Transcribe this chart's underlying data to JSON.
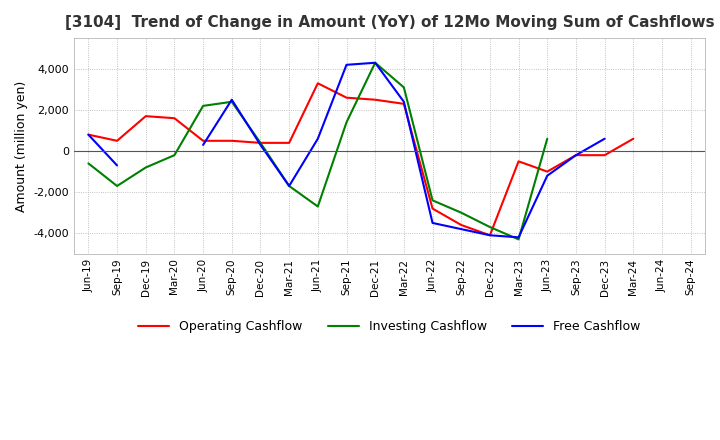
{
  "title": "[3104]  Trend of Change in Amount (YoY) of 12Mo Moving Sum of Cashflows",
  "ylabel": "Amount (million yen)",
  "x_labels": [
    "Jun-19",
    "Sep-19",
    "Dec-19",
    "Mar-20",
    "Jun-20",
    "Sep-20",
    "Dec-20",
    "Mar-21",
    "Jun-21",
    "Sep-21",
    "Dec-21",
    "Mar-22",
    "Jun-22",
    "Sep-22",
    "Dec-22",
    "Mar-23",
    "Jun-23",
    "Sep-23",
    "Dec-23",
    "Mar-24",
    "Jun-24",
    "Sep-24"
  ],
  "operating": [
    800,
    500,
    1700,
    1600,
    500,
    500,
    400,
    400,
    3300,
    2600,
    2500,
    2300,
    -2800,
    -3600,
    -4100,
    -500,
    -1000,
    -200,
    -200,
    600,
    null,
    null
  ],
  "investing": [
    -600,
    -1700,
    -800,
    -200,
    2200,
    2400,
    400,
    -1700,
    -2700,
    1400,
    4300,
    3100,
    -2400,
    -3000,
    -3700,
    -4300,
    600,
    null,
    null,
    null,
    null,
    null
  ],
  "free": [
    800,
    -700,
    null,
    null,
    300,
    2500,
    300,
    -1700,
    600,
    4200,
    4300,
    2400,
    -3500,
    -3800,
    -4100,
    -4200,
    -1200,
    -200,
    600,
    null,
    null,
    null
  ],
  "ylim": [
    -5000,
    5500
  ],
  "yticks": [
    -4000,
    -2000,
    0,
    2000,
    4000
  ],
  "colors": {
    "operating": "#ff0000",
    "investing": "#008000",
    "free": "#0000ff"
  },
  "legend_labels": [
    "Operating Cashflow",
    "Investing Cashflow",
    "Free Cashflow"
  ],
  "title_color": "#333333",
  "background_color": "#ffffff",
  "grid_color": "#b0b0b0"
}
